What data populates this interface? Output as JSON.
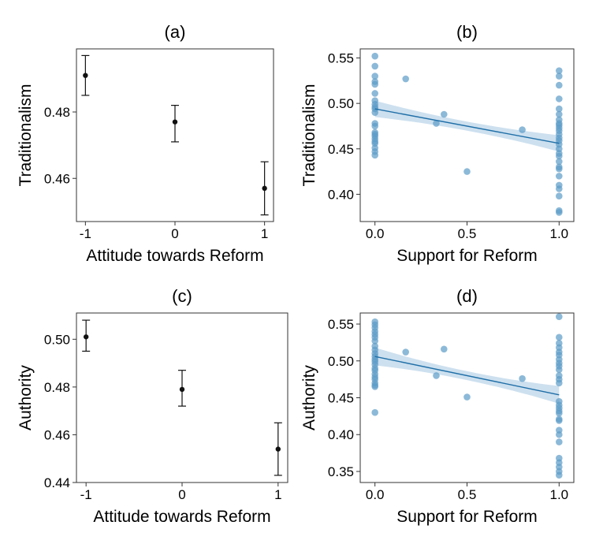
{
  "colors": {
    "point": "#5b9bc8",
    "line": "#1f6fa8",
    "band": "#bcd5ea",
    "errorbar": "#111111"
  },
  "chart_data": [
    {
      "panel": "(a)",
      "type": "errorbar",
      "title": "(a)",
      "xlabel": "Attitude towards Reform",
      "ylabel": "Traditionalism",
      "x": [
        -1,
        0,
        1
      ],
      "x_tick_labels": [
        "-1",
        "0",
        "1"
      ],
      "y": [
        0.491,
        0.477,
        0.457
      ],
      "yerr_low": [
        0.485,
        0.471,
        0.449
      ],
      "yerr_high": [
        0.497,
        0.482,
        0.465
      ],
      "xlim": [
        -1.1,
        1.1
      ],
      "ylim": [
        0.447,
        0.499
      ],
      "yticks": [
        0.46,
        0.48
      ],
      "ytick_labels": [
        "0.46",
        "0.48"
      ]
    },
    {
      "panel": "(b)",
      "type": "scatter",
      "title": "(b)",
      "xlabel": "Support for Reform",
      "ylabel": "Traditionalism",
      "xlim": [
        -0.08,
        1.08
      ],
      "ylim": [
        0.37,
        0.56
      ],
      "xticks": [
        0,
        0.5,
        1
      ],
      "xtick_labels": [
        "0.0",
        "0.5",
        "1.0"
      ],
      "yticks": [
        0.4,
        0.45,
        0.5,
        0.55
      ],
      "ytick_labels": [
        "0.40",
        "0.45",
        "0.50",
        "0.55"
      ],
      "points_x": [
        0,
        0,
        0,
        0,
        0,
        0,
        0,
        0,
        0,
        0,
        0,
        0,
        0,
        0,
        0,
        0,
        0,
        0,
        0,
        0,
        0,
        0,
        0.167,
        0.333,
        0.375,
        0.5,
        0.8,
        1,
        1,
        1,
        1,
        1,
        1,
        1,
        1,
        1,
        1,
        1,
        1,
        1,
        1,
        1,
        1,
        1,
        1,
        1,
        1,
        1,
        1,
        1,
        1,
        1,
        1,
        1
      ],
      "points_y": [
        0.552,
        0.541,
        0.53,
        0.524,
        0.521,
        0.511,
        0.503,
        0.499,
        0.496,
        0.494,
        0.49,
        0.478,
        0.475,
        0.468,
        0.466,
        0.464,
        0.461,
        0.458,
        0.456,
        0.451,
        0.447,
        0.443,
        0.527,
        0.478,
        0.488,
        0.425,
        0.471,
        0.536,
        0.53,
        0.52,
        0.505,
        0.494,
        0.488,
        0.482,
        0.478,
        0.476,
        0.473,
        0.47,
        0.466,
        0.462,
        0.459,
        0.455,
        0.45,
        0.445,
        0.442,
        0.436,
        0.43,
        0.428,
        0.42,
        0.41,
        0.406,
        0.398,
        0.382,
        0.38
      ],
      "fit": {
        "intercept": 0.494,
        "slope": -0.038,
        "ci_halfwidth_ends": 0.009,
        "ci_halfwidth_mid": 0.005
      }
    },
    {
      "panel": "(c)",
      "type": "errorbar",
      "title": "(c)",
      "xlabel": "Attitude towards Reform",
      "ylabel": "Authority",
      "x": [
        -1,
        0,
        1
      ],
      "x_tick_labels": [
        "-1",
        "0",
        "1"
      ],
      "y": [
        0.501,
        0.479,
        0.454
      ],
      "yerr_low": [
        0.495,
        0.472,
        0.443
      ],
      "yerr_high": [
        0.508,
        0.487,
        0.465
      ],
      "xlim": [
        -1.1,
        1.1
      ],
      "ylim": [
        0.44,
        0.511
      ],
      "yticks": [
        0.44,
        0.46,
        0.48,
        0.5
      ],
      "ytick_labels": [
        "0.44",
        "0.46",
        "0.48",
        "0.50"
      ]
    },
    {
      "panel": "(d)",
      "type": "scatter",
      "title": "(d)",
      "xlabel": "Support for Reform",
      "ylabel": "Authority",
      "xlim": [
        -0.08,
        1.08
      ],
      "ylim": [
        0.335,
        0.565
      ],
      "xticks": [
        0,
        0.5,
        1
      ],
      "xtick_labels": [
        "0.0",
        "0.5",
        "1.0"
      ],
      "yticks": [
        0.35,
        0.4,
        0.45,
        0.5,
        0.55
      ],
      "ytick_labels": [
        "0.35",
        "0.40",
        "0.45",
        "0.50",
        "0.55"
      ],
      "points_x": [
        0,
        0,
        0,
        0,
        0,
        0,
        0,
        0,
        0,
        0,
        0,
        0,
        0,
        0,
        0,
        0,
        0,
        0,
        0,
        0,
        0,
        0,
        0,
        0.167,
        0.333,
        0.375,
        0.5,
        0.8,
        1,
        1,
        1,
        1,
        1,
        1,
        1,
        1,
        1,
        1,
        1,
        1,
        1,
        1,
        1,
        1,
        1,
        1,
        1,
        1,
        1,
        1,
        1,
        1,
        1,
        1,
        1,
        1
      ],
      "points_y": [
        0.553,
        0.549,
        0.545,
        0.54,
        0.536,
        0.532,
        0.527,
        0.52,
        0.515,
        0.51,
        0.506,
        0.502,
        0.499,
        0.495,
        0.49,
        0.487,
        0.482,
        0.478,
        0.475,
        0.47,
        0.467,
        0.465,
        0.43,
        0.512,
        0.48,
        0.516,
        0.451,
        0.476,
        0.56,
        0.532,
        0.524,
        0.518,
        0.512,
        0.508,
        0.502,
        0.497,
        0.493,
        0.488,
        0.48,
        0.475,
        0.47,
        0.445,
        0.44,
        0.436,
        0.432,
        0.429,
        0.421,
        0.419,
        0.406,
        0.4,
        0.39,
        0.368,
        0.362,
        0.356,
        0.35,
        0.345
      ],
      "fit": {
        "intercept": 0.506,
        "slope": -0.052,
        "ci_halfwidth_ends": 0.012,
        "ci_halfwidth_mid": 0.006
      }
    }
  ]
}
